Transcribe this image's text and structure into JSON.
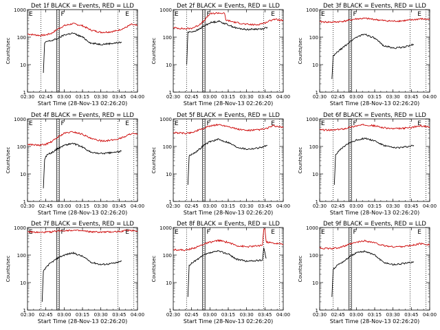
{
  "chart_data": [
    {
      "type": "line",
      "title": "Det 1f BLACK = Events, RED = LLD",
      "ylabel": "Counts/sec",
      "xlabel": "Start Time (28-Nov-13 02:26:20)",
      "marker_left": "E",
      "marker_mid": "F",
      "marker_right": "E",
      "x_ticks": [
        "02:30",
        "02:45",
        "03:00",
        "03:15",
        "03:30",
        "03:45",
        "04:00"
      ],
      "y_ticks": [
        "1",
        "10",
        "100",
        "1000"
      ],
      "ylim": [
        1,
        1000
      ],
      "yscale": "log",
      "series": [
        {
          "color": "#cc0000",
          "x": [
            "02:30",
            "02:40",
            "02:45",
            "02:50",
            "02:55",
            "03:00",
            "03:07",
            "03:15",
            "03:22",
            "03:30",
            "03:37",
            "03:43",
            "03:50",
            "03:55",
            "04:00"
          ],
          "values": [
            130,
            115,
            120,
            140,
            200,
            260,
            310,
            260,
            180,
            150,
            155,
            170,
            220,
            290,
            260
          ]
        },
        {
          "color": "#000000",
          "x": [
            "02:43",
            "02:44",
            "02:46",
            "02:50",
            "02:55",
            "03:00",
            "03:07",
            "03:15",
            "03:22",
            "03:30",
            "03:37",
            "03:43",
            "03:47"
          ],
          "values": [
            5,
            60,
            70,
            75,
            90,
            120,
            140,
            100,
            60,
            55,
            58,
            62,
            65
          ]
        }
      ]
    },
    {
      "type": "line",
      "title": "Det 2f BLACK = Events, RED = LLD",
      "ylabel": "Counts/sec",
      "xlabel": "Start Time (28-Nov-13 02:26:20)",
      "marker_left": "E",
      "marker_mid": "F",
      "marker_right": "E",
      "x_ticks": [
        "02:30",
        "02:45",
        "03:00",
        "03:15",
        "03:30",
        "03:45",
        "04:00"
      ],
      "y_ticks": [
        "1",
        "10",
        "100",
        "1000"
      ],
      "ylim": [
        1,
        1000
      ],
      "yscale": "log",
      "series": [
        {
          "color": "#cc0000",
          "x": [
            "02:30",
            "02:40",
            "02:45",
            "02:50",
            "02:55",
            "03:00",
            "03:07",
            "03:12",
            "03:13",
            "03:20",
            "03:30",
            "03:38",
            "03:45",
            "03:52",
            "04:00"
          ],
          "values": [
            220,
            200,
            210,
            260,
            380,
            700,
            760,
            720,
            420,
            350,
            290,
            280,
            330,
            450,
            400
          ]
        },
        {
          "color": "#000000",
          "x": [
            "02:41",
            "02:42",
            "02:46",
            "02:50",
            "02:55",
            "03:00",
            "03:07",
            "03:15",
            "03:22",
            "03:30",
            "03:37",
            "03:43",
            "03:47"
          ],
          "values": [
            10,
            150,
            160,
            180,
            250,
            330,
            380,
            280,
            210,
            190,
            195,
            200,
            230
          ]
        }
      ]
    },
    {
      "type": "line",
      "title": "Det 3f BLACK = Events, RED = LLD",
      "ylabel": "Counts/sec",
      "xlabel": "Start Time (28-Nov-13 02:26:20)",
      "marker_left": "E",
      "marker_mid": "F",
      "marker_right": "E",
      "x_ticks": [
        "02:30",
        "02:45",
        "03:00",
        "03:15",
        "03:30",
        "03:45",
        "04:00"
      ],
      "y_ticks": [
        "1",
        "10",
        "100",
        "1000"
      ],
      "ylim": [
        1,
        1000
      ],
      "yscale": "log",
      "series": [
        {
          "color": "#cc0000",
          "x": [
            "02:30",
            "02:40",
            "02:45",
            "02:50",
            "02:55",
            "03:00",
            "03:07",
            "03:15",
            "03:22",
            "03:30",
            "03:37",
            "03:45",
            "03:52",
            "04:00"
          ],
          "values": [
            360,
            350,
            360,
            380,
            420,
            460,
            480,
            440,
            400,
            380,
            390,
            420,
            460,
            440
          ]
        },
        {
          "color": "#000000",
          "x": [
            "02:40",
            "02:41",
            "02:45",
            "02:50",
            "02:55",
            "03:00",
            "03:07",
            "03:15",
            "03:22",
            "03:30",
            "03:37",
            "03:43",
            "03:47"
          ],
          "values": [
            3,
            20,
            30,
            45,
            70,
            100,
            130,
            90,
            50,
            40,
            42,
            48,
            55
          ]
        }
      ]
    },
    {
      "type": "line",
      "title": "Det 4f BLACK = Events, RED = LLD",
      "ylabel": "Counts/sec",
      "xlabel": "Start Time (28-Nov-13 02:26:20)",
      "marker_left": "E",
      "marker_mid": "F",
      "marker_right": "E",
      "x_ticks": [
        "02:30",
        "02:45",
        "03:00",
        "03:15",
        "03:30",
        "03:45",
        "04:00"
      ],
      "y_ticks": [
        "1",
        "10",
        "100",
        "1000"
      ],
      "ylim": [
        1,
        1000
      ],
      "yscale": "log",
      "series": [
        {
          "color": "#cc0000",
          "x": [
            "02:30",
            "02:40",
            "02:45",
            "02:50",
            "02:55",
            "03:00",
            "03:07",
            "03:15",
            "03:22",
            "03:30",
            "03:37",
            "03:43",
            "03:50",
            "03:55",
            "04:00"
          ],
          "values": [
            120,
            110,
            120,
            150,
            220,
            300,
            340,
            280,
            190,
            160,
            165,
            180,
            230,
            300,
            270
          ]
        },
        {
          "color": "#000000",
          "x": [
            "02:43",
            "02:44",
            "02:46",
            "02:50",
            "02:55",
            "03:00",
            "03:07",
            "03:15",
            "03:22",
            "03:30",
            "03:37",
            "03:43",
            "03:47"
          ],
          "values": [
            3,
            35,
            50,
            60,
            85,
            110,
            130,
            95,
            60,
            55,
            58,
            62,
            68
          ]
        }
      ]
    },
    {
      "type": "line",
      "title": "Det 5f BLACK = Events, RED = LLD",
      "ylabel": "Counts/sec",
      "xlabel": "Start Time (28-Nov-13 02:26:20)",
      "marker_left": "E",
      "marker_mid": "F",
      "marker_right": "E",
      "x_ticks": [
        "02:30",
        "02:45",
        "03:00",
        "03:15",
        "03:30",
        "03:45",
        "04:00"
      ],
      "y_ticks": [
        "1",
        "10",
        "100",
        "1000"
      ],
      "ylim": [
        1,
        1000
      ],
      "yscale": "log",
      "series": [
        {
          "color": "#cc0000",
          "x": [
            "02:30",
            "02:40",
            "02:45",
            "02:50",
            "02:55",
            "03:00",
            "03:07",
            "03:15",
            "03:22",
            "03:30",
            "03:37",
            "03:45",
            "03:52",
            "04:00"
          ],
          "values": [
            320,
            300,
            320,
            380,
            450,
            560,
            620,
            540,
            430,
            380,
            390,
            430,
            560,
            480
          ]
        },
        {
          "color": "#000000",
          "x": [
            "02:42",
            "02:43",
            "02:46",
            "02:50",
            "02:55",
            "03:00",
            "03:07",
            "03:15",
            "03:22",
            "03:30",
            "03:37",
            "03:43",
            "03:47"
          ],
          "values": [
            4,
            45,
            55,
            70,
            110,
            150,
            180,
            140,
            95,
            80,
            85,
            95,
            110
          ]
        }
      ]
    },
    {
      "type": "line",
      "title": "Det 6f BLACK = Events, RED = LLD",
      "ylabel": "Counts/sec",
      "xlabel": "Start Time (28-Nov-13 02:26:20)",
      "marker_left": "E",
      "marker_mid": "F",
      "marker_right": "E",
      "x_ticks": [
        "02:30",
        "02:45",
        "03:00",
        "03:15",
        "03:30",
        "03:45",
        "04:00"
      ],
      "y_ticks": [
        "1",
        "10",
        "100",
        "1000"
      ],
      "ylim": [
        1,
        1000
      ],
      "yscale": "log",
      "series": [
        {
          "color": "#cc0000",
          "x": [
            "02:30",
            "02:40",
            "02:45",
            "02:50",
            "02:55",
            "03:00",
            "03:07",
            "03:15",
            "03:22",
            "03:30",
            "03:37",
            "03:45",
            "03:52",
            "04:00"
          ],
          "values": [
            400,
            390,
            410,
            440,
            500,
            560,
            620,
            560,
            480,
            440,
            450,
            490,
            560,
            520
          ]
        },
        {
          "color": "#000000",
          "x": [
            "02:42",
            "02:43",
            "02:46",
            "02:50",
            "02:55",
            "03:00",
            "03:07",
            "03:15",
            "03:22",
            "03:30",
            "03:37",
            "03:43",
            "03:47"
          ],
          "values": [
            4,
            50,
            70,
            100,
            140,
            170,
            200,
            160,
            110,
            90,
            92,
            100,
            110
          ]
        }
      ]
    },
    {
      "type": "line",
      "title": "Det 7f BLACK = Events, RED = LLD",
      "ylabel": "Counts/sec",
      "xlabel": "Start Time (28-Nov-13 02:26:20)",
      "marker_left": "E",
      "marker_mid": "F",
      "marker_right": "E",
      "x_ticks": [
        "02:30",
        "02:45",
        "03:00",
        "03:15",
        "03:30",
        "03:45",
        "04:00"
      ],
      "y_ticks": [
        "1",
        "10",
        "100",
        "1000"
      ],
      "ylim": [
        1,
        1000
      ],
      "yscale": "log",
      "series": [
        {
          "color": "#cc0000",
          "x": [
            "02:30",
            "02:40",
            "02:45",
            "02:50",
            "02:55",
            "03:00",
            "03:07",
            "03:15",
            "03:22",
            "03:30",
            "03:37",
            "03:45",
            "03:52",
            "04:00"
          ],
          "values": [
            700,
            660,
            680,
            700,
            760,
            780,
            800,
            750,
            700,
            680,
            690,
            720,
            800,
            760
          ]
        },
        {
          "color": "#000000",
          "x": [
            "02:42",
            "02:43",
            "02:46",
            "02:50",
            "02:55",
            "03:00",
            "03:07",
            "03:15",
            "03:22",
            "03:30",
            "03:37",
            "03:43",
            "03:47"
          ],
          "values": [
            2,
            25,
            40,
            55,
            80,
            100,
            120,
            90,
            55,
            45,
            48,
            52,
            60
          ]
        }
      ]
    },
    {
      "type": "line",
      "title": "Det 8f BLACK = Events, RED = LLD",
      "ylabel": "Counts/sec",
      "xlabel": "Start Time (28-Nov-13 02:26:20)",
      "marker_left": "E",
      "marker_mid": "F",
      "marker_right": "E",
      "x_ticks": [
        "02:30",
        "02:45",
        "03:00",
        "03:15",
        "03:30",
        "03:45",
        "04:00"
      ],
      "y_ticks": [
        "1",
        "10",
        "100",
        "1000"
      ],
      "ylim": [
        1,
        1000
      ],
      "yscale": "log",
      "series": [
        {
          "color": "#cc0000",
          "x": [
            "02:30",
            "02:40",
            "02:45",
            "02:50",
            "02:55",
            "03:00",
            "03:07",
            "03:15",
            "03:22",
            "03:30",
            "03:37",
            "03:43",
            "03:44",
            "03:45",
            "03:46",
            "03:52",
            "04:00"
          ],
          "values": [
            160,
            150,
            170,
            200,
            250,
            290,
            340,
            290,
            220,
            200,
            210,
            230,
            900,
            900,
            300,
            270,
            250
          ]
        },
        {
          "color": "#000000",
          "x": [
            "02:42",
            "02:43",
            "02:46",
            "02:50",
            "02:55",
            "03:00",
            "03:07",
            "03:15",
            "03:22",
            "03:30",
            "03:37",
            "03:43",
            "03:44",
            "03:46"
          ],
          "values": [
            3,
            40,
            55,
            70,
            100,
            120,
            140,
            110,
            70,
            60,
            62,
            65,
            200,
            75
          ]
        }
      ]
    },
    {
      "type": "line",
      "title": "Det 9f BLACK = Events, RED = LLD",
      "ylabel": "Counts/sec",
      "xlabel": "Start Time (28-Nov-13 02:26:20)",
      "marker_left": "E",
      "marker_mid": "F",
      "marker_right": "E",
      "x_ticks": [
        "02:30",
        "02:45",
        "03:00",
        "03:15",
        "03:30",
        "03:45",
        "04:00"
      ],
      "y_ticks": [
        "1",
        "10",
        "100",
        "1000"
      ],
      "ylim": [
        1,
        1000
      ],
      "yscale": "log",
      "series": [
        {
          "color": "#cc0000",
          "x": [
            "02:30",
            "02:40",
            "02:45",
            "02:50",
            "02:55",
            "03:00",
            "03:07",
            "03:15",
            "03:22",
            "03:30",
            "03:37",
            "03:45",
            "03:52",
            "04:00"
          ],
          "values": [
            180,
            170,
            185,
            210,
            250,
            290,
            330,
            280,
            220,
            200,
            205,
            220,
            260,
            240
          ]
        },
        {
          "color": "#000000",
          "x": [
            "02:40",
            "02:41",
            "02:45",
            "02:50",
            "02:55",
            "03:00",
            "03:07",
            "03:15",
            "03:22",
            "03:30",
            "03:37",
            "03:43",
            "03:47"
          ],
          "values": [
            3,
            30,
            45,
            60,
            90,
            120,
            140,
            100,
            55,
            45,
            48,
            52,
            58
          ]
        }
      ]
    }
  ]
}
